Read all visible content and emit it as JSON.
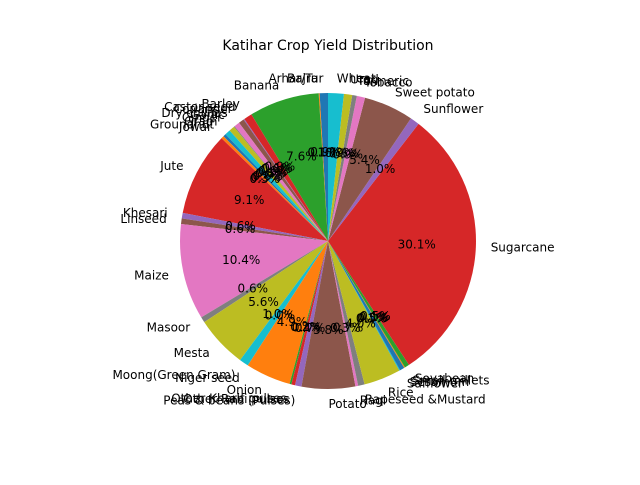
{
  "chart_data": {
    "type": "pie",
    "title": "Katihar Crop Yield Distribution",
    "start_angle_deg": 90,
    "direction": "counterclockwise",
    "percent_format": "%1.1f%%",
    "slices": [
      {
        "label": "Arhar/Tur",
        "pct": 0.9,
        "color": "#1f77b4"
      },
      {
        "label": "Bajra",
        "pct": 0.1,
        "color": "#ff7f0e"
      },
      {
        "label": "Banana",
        "pct": 7.6,
        "color": "#2ca02c"
      },
      {
        "label": "Barley",
        "pct": 0.9,
        "color": "#d62728"
      },
      {
        "label": "Castor seed",
        "pct": 0.1,
        "color": "#9467bd"
      },
      {
        "label": "Coriander",
        "pct": 0.6,
        "color": "#8c564b"
      },
      {
        "label": "Dry chillies",
        "pct": 0.6,
        "color": "#e377c2"
      },
      {
        "label": "Garlic",
        "pct": 0.1,
        "color": "#7f7f7f"
      },
      {
        "label": "Ginger",
        "pct": 0.6,
        "color": "#bcbd22"
      },
      {
        "label": "Gram",
        "pct": 0.6,
        "color": "#17becf"
      },
      {
        "label": "Groundnut",
        "pct": 0.3,
        "color": "#1f77b4"
      },
      {
        "label": "Jowar",
        "pct": 0.3,
        "color": "#ff7f0e"
      },
      {
        "label": "Jute",
        "pct": 9.1,
        "color": "#d62728"
      },
      {
        "label": "Khesari",
        "pct": 0.6,
        "color": "#9467bd"
      },
      {
        "label": "Linseed",
        "pct": 0.6,
        "color": "#8c564b"
      },
      {
        "label": "Maize",
        "pct": 10.4,
        "color": "#e377c2"
      },
      {
        "label": "Masoor",
        "pct": 0.6,
        "color": "#7f7f7f"
      },
      {
        "label": "Mesta",
        "pct": 5.6,
        "color": "#bcbd22"
      },
      {
        "label": "Moong(Green Gram)",
        "pct": 1.0,
        "color": "#17becf"
      },
      {
        "label": "Niger seed",
        "pct": 0.0,
        "color": "#1f77b4"
      },
      {
        "label": "Onion",
        "pct": 4.9,
        "color": "#ff7f0e"
      },
      {
        "label": "Other Kharif pulses",
        "pct": 0.2,
        "color": "#2ca02c"
      },
      {
        "label": "Other Rabi pulses",
        "pct": 0.4,
        "color": "#d62728"
      },
      {
        "label": "Peas & beans (Pulses)",
        "pct": 0.7,
        "color": "#9467bd"
      },
      {
        "label": "Potato",
        "pct": 5.8,
        "color": "#8c564b"
      },
      {
        "label": "Ragi",
        "pct": 0.3,
        "color": "#e377c2"
      },
      {
        "label": "Rapeseed &Mustard",
        "pct": 0.7,
        "color": "#7f7f7f"
      },
      {
        "label": "Rice",
        "pct": 4.0,
        "color": "#bcbd22"
      },
      {
        "label": "Safflower",
        "pct": 0.1,
        "color": "#17becf"
      },
      {
        "label": "Sesamum",
        "pct": 0.5,
        "color": "#1f77b4"
      },
      {
        "label": "Small millets",
        "pct": 0.1,
        "color": "#ff7f0e"
      },
      {
        "label": "Soyabean",
        "pct": 0.5,
        "color": "#2ca02c"
      },
      {
        "label": "Sugarcane",
        "pct": 30.1,
        "color": "#d62728"
      },
      {
        "label": "Sunflower",
        "pct": 1.0,
        "color": "#9467bd"
      },
      {
        "label": "Sweet potato",
        "pct": 5.4,
        "color": "#8c564b"
      },
      {
        "label": "Tobacco",
        "pct": 0.9,
        "color": "#e377c2"
      },
      {
        "label": "Turmeric",
        "pct": 0.5,
        "color": "#7f7f7f"
      },
      {
        "label": "Urad",
        "pct": 0.9,
        "color": "#bcbd22"
      },
      {
        "label": "Wheat",
        "pct": 1.7,
        "color": "#17becf"
      }
    ]
  }
}
